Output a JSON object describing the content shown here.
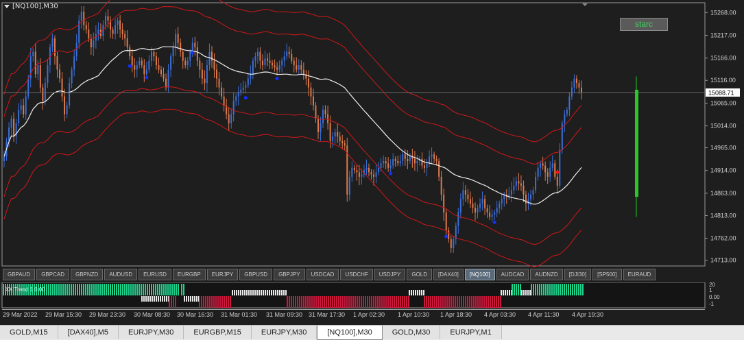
{
  "window": {
    "title": "[NQ100],M30"
  },
  "indicator_button": {
    "label": "starc"
  },
  "price_axis": {
    "labels": [
      "15268.00",
      "15217.00",
      "15166.00",
      "15116.00",
      "15065.00",
      "15014.00",
      "14965.00",
      "14914.00",
      "14863.00",
      "14813.00",
      "14762.00",
      "14713.00"
    ],
    "current_price": "15088.71"
  },
  "symbol_bar": {
    "items": [
      "GBPAUD",
      "GBPCAD",
      "GBPNZD",
      "AUDUSD",
      "EURUSD",
      "EURGBP",
      "EURJPY",
      "GBPUSD",
      "GBPJPY",
      "USDCAD",
      "USDCHF",
      "USDJPY",
      "GOLD",
      "[DAX40]",
      "[NQ100]",
      "AUDCAD",
      "AUDNZD",
      "[DJI30]",
      "[SP500]",
      "EURAUD"
    ],
    "active": "[NQ100]"
  },
  "indicator_pane": {
    "label": "XX Trend  1  0.00",
    "axis_labels": [
      "20",
      "1",
      "0.00",
      "-1"
    ]
  },
  "time_axis": {
    "labels": [
      "29 Mar 2022",
      "29 Mar 15:30",
      "29 Mar 23:30",
      "30 Mar 08:30",
      "30 Mar 16:30",
      "31 Mar 01:30",
      "31 Mar 09:30",
      "31 Mar 17:30",
      "1 Apr 02:30",
      "1 Apr 10:30",
      "1 Apr 18:30",
      "4 Apr 03:30",
      "4 Apr 11:30",
      "4 Apr 19:30"
    ]
  },
  "chart_tabs": {
    "items": [
      "GOLD,M15",
      "[DAX40],M5",
      "EURJPY,M30",
      "EURGBP,M15",
      "EURJPY,M30",
      "[NQ100],M30",
      "GOLD,M30",
      "EURJPY,M1"
    ],
    "active_index": 5
  },
  "colors": {
    "background": "#1e1e1e",
    "bull": "#3b6fd8",
    "bear": "#e07a4a",
    "band": "#d01818",
    "midline": "#f0f0f0",
    "signal_bar": "#28c828",
    "hist_green": "#1fd28c",
    "hist_red": "#c8183c",
    "hist_white": "#e8e8e8"
  },
  "chart_data": {
    "type": "candlestick",
    "symbol": "[NQ100]",
    "timeframe": "M30",
    "ylim": [
      14700,
      15290
    ],
    "last_price": 15088.71,
    "close": [
      14945,
      14980,
      15010,
      15030,
      14990,
      15020,
      15050,
      15060,
      15040,
      15080,
      15120,
      15170,
      15180,
      15130,
      15150,
      15100,
      15070,
      15110,
      15150,
      15190,
      15210,
      15170,
      15140,
      15120,
      15080,
      15040,
      15060,
      15110,
      15140,
      15170,
      15200,
      15250,
      15270,
      15240,
      15230,
      15210,
      15190,
      15205,
      15220,
      15230,
      15215,
      15240,
      15260,
      15250,
      15230,
      15220,
      15240,
      15250,
      15230,
      15220,
      15210,
      15190,
      15170,
      15150,
      15140,
      15150,
      15160,
      15150,
      15130,
      15140,
      15160,
      15180,
      15170,
      15150,
      15140,
      15130,
      15120,
      15100,
      15140,
      15170,
      15190,
      15220,
      15200,
      15180,
      15160,
      15150,
      15160,
      15180,
      15200,
      15190,
      15160,
      15140,
      15120,
      15110,
      15150,
      15180,
      15160,
      15140,
      15120,
      15100,
      15080,
      15060,
      15040,
      15020,
      15040,
      15070,
      15080,
      15090,
      15095,
      15100,
      15105,
      15120,
      15130,
      15160,
      15170,
      15180,
      15160,
      15150,
      15165,
      15160,
      15155,
      15150,
      15145,
      15140,
      15150,
      15160,
      15170,
      15180,
      15175,
      15160,
      15150,
      15140,
      15150,
      15140,
      15130,
      15120,
      15100,
      15080,
      15060,
      15030,
      15000,
      15020,
      15050,
      15040,
      15020,
      14980,
      14990,
      15000,
      14990,
      14980,
      14975,
      14970,
      14860,
      14900,
      14920,
      14915,
      14910,
      14900,
      14905,
      14915,
      14920,
      14910,
      14905,
      14900,
      14910,
      14920,
      14930,
      14935,
      14930,
      14920,
      14925,
      14940,
      14935,
      14930,
      14935,
      14950,
      14940,
      14935,
      14945,
      14940,
      14930,
      14935,
      14940,
      14925,
      14920,
      14930,
      14945,
      14950,
      14940,
      14935,
      14900,
      14860,
      14820,
      14780,
      14760,
      14740,
      14760,
      14790,
      14820,
      14850,
      14870,
      14860,
      14850,
      14840,
      14830,
      14820,
      14830,
      14840,
      14850,
      14830,
      14820,
      14810,
      14815,
      14820,
      14830,
      14840,
      14850,
      14860,
      14855,
      14860,
      14870,
      14880,
      14890,
      14885,
      14880,
      14860,
      14840,
      14850,
      14860,
      14870,
      14900,
      14920,
      14930,
      14925,
      14910,
      14900,
      14920,
      14930,
      14900,
      14880,
      14960,
      15020,
      15040,
      15050,
      15080,
      15100,
      15120,
      15110,
      15100,
      15088.71
    ]
  }
}
